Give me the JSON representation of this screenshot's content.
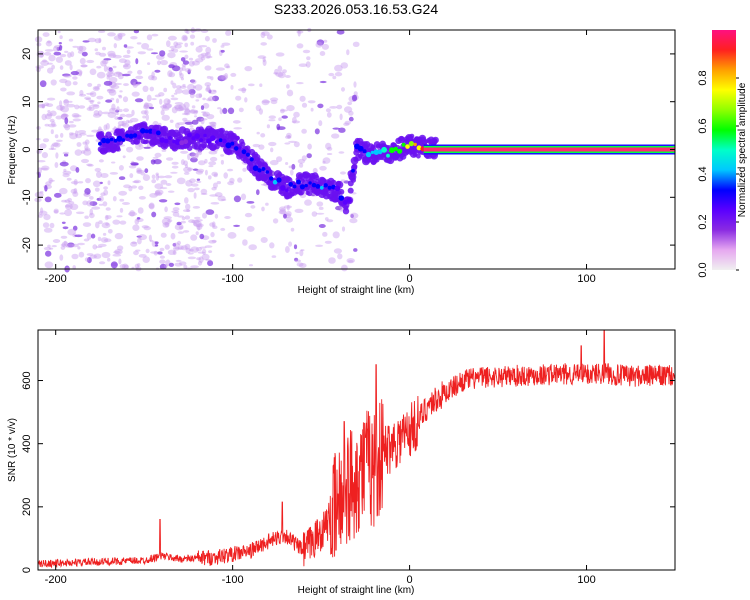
{
  "title": "S233.2026.053.16.53.G24",
  "chart_data": [
    {
      "type": "heatmap",
      "xlabel": "Height of straight line (km)",
      "ylabel": "Frequency (Hz)",
      "xlim": [
        -210,
        150
      ],
      "ylim": [
        -25,
        25
      ],
      "xticks": [
        -200,
        -100,
        0,
        100
      ],
      "yticks": [
        -20,
        -10,
        0,
        10,
        20
      ],
      "colorbar": {
        "label": "Normalized spectral amplitude",
        "range": [
          0,
          1
        ],
        "ticks": [
          "0.0",
          "0.2",
          "0.4",
          "0.6",
          "0.8"
        ],
        "colormap": [
          "#f0f0f0",
          "#e6a8f0",
          "#8a2be2",
          "#5a00ff",
          "#0000ff",
          "#00c8ff",
          "#00ffc8",
          "#00ff00",
          "#90ff00",
          "#ffff00",
          "#ffa000",
          "#ff2020",
          "#ff1080"
        ]
      },
      "ridge": [
        {
          "x": -175,
          "y": 1.5,
          "v": 0.35
        },
        {
          "x": -165,
          "y": 2.0,
          "v": 0.3
        },
        {
          "x": -155,
          "y": 3.0,
          "v": 0.35
        },
        {
          "x": -148,
          "y": 3.5,
          "v": 0.3
        },
        {
          "x": -140,
          "y": 2.5,
          "v": 0.25
        },
        {
          "x": -130,
          "y": 2.0,
          "v": 0.2
        },
        {
          "x": -120,
          "y": 2.5,
          "v": 0.25
        },
        {
          "x": -105,
          "y": 2.0,
          "v": 0.3
        },
        {
          "x": -95,
          "y": 0.0,
          "v": 0.3
        },
        {
          "x": -85,
          "y": -4.0,
          "v": 0.35
        },
        {
          "x": -78,
          "y": -6.0,
          "v": 0.35
        },
        {
          "x": -70,
          "y": -8.0,
          "v": 0.3
        },
        {
          "x": -60,
          "y": -7.0,
          "v": 0.35
        },
        {
          "x": -50,
          "y": -7.5,
          "v": 0.35
        },
        {
          "x": -40,
          "y": -9.0,
          "v": 0.3
        },
        {
          "x": -35,
          "y": -12.5,
          "v": 0.3
        },
        {
          "x": -30,
          "y": 0.0,
          "v": 0.35
        },
        {
          "x": -20,
          "y": -1.0,
          "v": 0.45
        },
        {
          "x": -10,
          "y": -0.5,
          "v": 0.5
        },
        {
          "x": 0,
          "y": 1.0,
          "v": 0.7
        },
        {
          "x": 10,
          "y": 0.0,
          "v": 0.9
        },
        {
          "x": 150,
          "y": 0.0,
          "v": 0.95
        }
      ]
    },
    {
      "type": "line",
      "xlabel": "Height of straight line (km)",
      "ylabel": "SNR (10 * v/v)",
      "xlim": [
        -210,
        150
      ],
      "ylim": [
        0,
        760
      ],
      "xticks": [
        -200,
        -100,
        0,
        100
      ],
      "yticks": [
        0,
        200,
        400,
        600
      ],
      "color": "#ee2020",
      "series": [
        {
          "name": "SNR",
          "x": [
            -210,
            -180,
            -150,
            -140,
            -130,
            -110,
            -100,
            -90,
            -80,
            -70,
            -60,
            -50,
            -40,
            -35,
            -30,
            -25,
            -20,
            -15,
            -10,
            -5,
            0,
            5,
            10,
            20,
            30,
            40,
            60,
            80,
            100,
            110,
            120,
            150
          ],
          "values": [
            20,
            25,
            30,
            45,
            35,
            40,
            50,
            60,
            90,
            110,
            60,
            120,
            200,
            260,
            300,
            330,
            320,
            370,
            400,
            420,
            440,
            470,
            520,
            560,
            600,
            610,
            615,
            620,
            620,
            625,
            615,
            615
          ]
        }
      ],
      "spikes": [
        {
          "x": -141,
          "y": 160
        },
        {
          "x": -72,
          "y": 215
        },
        {
          "x": -37,
          "y": 470
        },
        {
          "x": -25,
          "y": 420
        },
        {
          "x": -19,
          "y": 650
        },
        {
          "x": -10,
          "y": 430
        },
        {
          "x": 97,
          "y": 710
        },
        {
          "x": 110,
          "y": 760
        }
      ]
    }
  ]
}
